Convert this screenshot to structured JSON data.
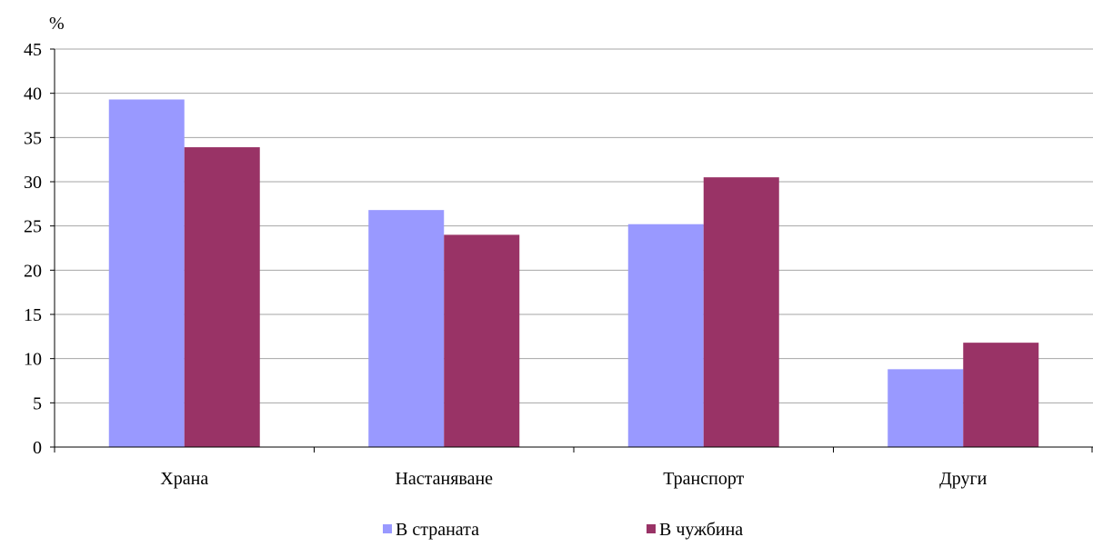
{
  "chart_data": {
    "type": "bar",
    "ylabel": "%",
    "xlabel": "",
    "ylim": [
      0,
      45
    ],
    "yticks": [
      0,
      5,
      10,
      15,
      20,
      25,
      30,
      35,
      40,
      45
    ],
    "grid": true,
    "legend_position": "bottom",
    "categories": [
      "Храна",
      "Настаняване",
      "Транспорт",
      "Други"
    ],
    "series": [
      {
        "name": "В страната",
        "color": "#9999ff",
        "values": [
          39.3,
          26.8,
          25.2,
          8.8
        ]
      },
      {
        "name": "В чужбина",
        "color": "#993366",
        "values": [
          33.9,
          24.0,
          30.5,
          11.8
        ]
      }
    ]
  }
}
